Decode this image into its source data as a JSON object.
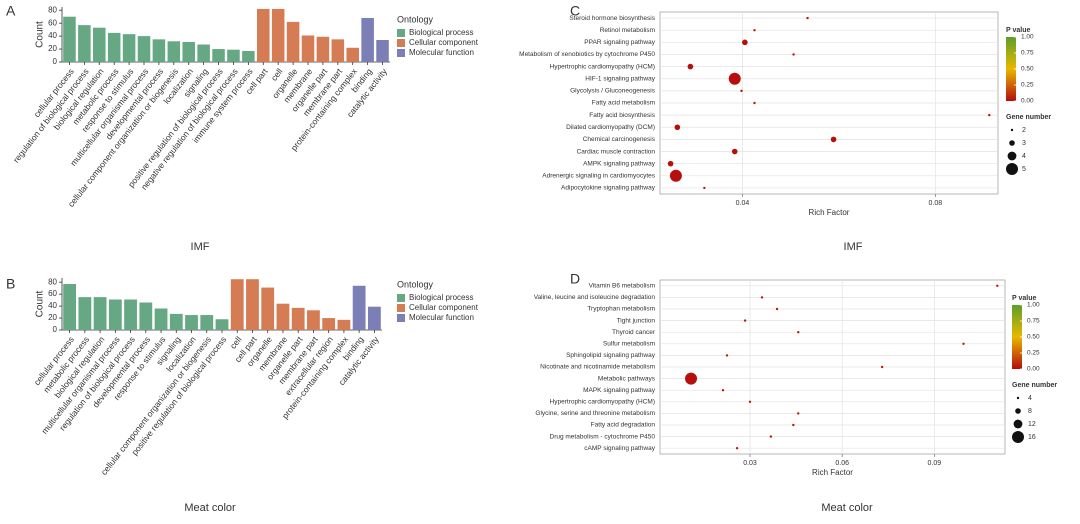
{
  "chart_data": [
    {
      "type": "bar",
      "panel_label": "A",
      "caption": "IMF",
      "ylabel": "Count",
      "legend_title": "Ontology",
      "categories": [
        "cellular process",
        "regulation of biological process",
        "biological regulation",
        "metabolic process",
        "response to stimulus",
        "multicellular organismal process",
        "developmental process",
        "cellular component organization or biogenesis",
        "localization",
        "signaling",
        "positive regulation of biological process",
        "negative regulation of biological process",
        "immune system process",
        "cell part",
        "cell",
        "organelle",
        "membrane",
        "organelle part",
        "membrane part",
        "protein-containing complex",
        "binding",
        "catalytic activity"
      ],
      "series": [
        {
          "name": "Biological process",
          "color": "#66a883",
          "values": [
            70,
            57,
            53,
            45,
            43,
            40,
            35,
            32,
            31,
            27,
            20,
            19,
            17,
            null,
            null,
            null,
            null,
            null,
            null,
            null,
            null,
            null
          ]
        },
        {
          "name": "Cellular component",
          "color": "#d57c55",
          "values": [
            null,
            null,
            null,
            null,
            null,
            null,
            null,
            null,
            null,
            null,
            null,
            null,
            null,
            82,
            82,
            62,
            41,
            39,
            35,
            22,
            null,
            null
          ]
        },
        {
          "name": "Molecular function",
          "color": "#7b7fb6",
          "values": [
            null,
            null,
            null,
            null,
            null,
            null,
            null,
            null,
            null,
            null,
            null,
            null,
            null,
            null,
            null,
            null,
            null,
            null,
            null,
            null,
            68,
            34
          ]
        }
      ],
      "ylim": [
        0,
        85
      ],
      "yticks": [
        0,
        20,
        40,
        60,
        80
      ]
    },
    {
      "type": "bubble",
      "panel_label": "C",
      "caption": "IMF",
      "xlabel": "Rich Factor",
      "categories": [
        "Steroid hormone biosynthesis",
        "Retinol metabolism",
        "PPAR signaling pathway",
        "Metabolism of xenobiotics by cytochrome P450",
        "Hypertrophic cardiomyopathy (HCM)",
        "HIF-1 signaling pathway",
        "Glycolysis / Gluconeogenesis",
        "Fatty acid metabolism",
        "Fatty acid biosynthesis",
        "Dilated cardiomyopathy (DCM)",
        "Chemical carcinogenesis",
        "Cardiac muscle contraction",
        "AMPK signaling pathway",
        "Adrenergic signaling in cardiomyocytes",
        "Adipocytokine signaling pathway"
      ],
      "x": [
        0.0535,
        0.0425,
        0.0405,
        0.0506,
        0.0292,
        0.0384,
        0.0398,
        0.0425,
        0.0912,
        0.0265,
        0.0589,
        0.0384,
        0.0251,
        0.0262,
        0.0321
      ],
      "sizes": [
        2,
        2,
        3,
        2,
        3,
        5,
        2,
        2,
        2,
        3,
        3,
        3,
        3,
        5,
        2
      ],
      "p_values": [
        0.02,
        0.03,
        0.01,
        0.02,
        0.01,
        0.005,
        0.03,
        0.03,
        0.04,
        0.01,
        0.01,
        0.01,
        0.01,
        0.005,
        0.02
      ],
      "xlim": [
        0.0229,
        0.093
      ],
      "xticks": [
        0.04,
        0.08
      ],
      "color_legend_title": "P value",
      "colors": [
        "#b50d0d",
        "#e8b800",
        "#5d9e2a"
      ],
      "color_ticks": [
        {
          "value": 0,
          "label": "0.00"
        },
        {
          "value": 0.25,
          "label": "0.25"
        },
        {
          "value": 0.5,
          "label": "0.50"
        },
        {
          "value": 0.75,
          "label": "0.75"
        },
        {
          "value": 1,
          "label": "1.00"
        }
      ],
      "size_legend_title": "Gene number",
      "size_ticks": [
        2,
        3,
        4,
        5
      ]
    },
    {
      "type": "bar",
      "panel_label": "B",
      "caption": "Meat color",
      "ylabel": "Count",
      "legend_title": "Ontology",
      "categories": [
        "cellular process",
        "metabolic process",
        "biological regulation",
        "multicellular organismal process",
        "regulation of biological process",
        "developmental process",
        "response to stimulus",
        "signaling",
        "localization",
        "cellular component organization or biogenesis",
        "positive regulation of biological process",
        "cell",
        "cell part",
        "organelle",
        "membrane",
        "organelle part",
        "membrane part",
        "extracellular region",
        "protein-containing complex",
        "binding",
        "catalytic activity"
      ],
      "series": [
        {
          "name": "Biological process",
          "color": "#66a883",
          "values": [
            77,
            55,
            55,
            51,
            51,
            46,
            36,
            27,
            25,
            25,
            18,
            null,
            null,
            null,
            null,
            null,
            null,
            null,
            null,
            null,
            null
          ]
        },
        {
          "name": "Cellular component",
          "color": "#d57c55",
          "values": [
            null,
            null,
            null,
            null,
            null,
            null,
            null,
            null,
            null,
            null,
            null,
            85,
            85,
            71,
            44,
            37,
            33,
            20,
            17,
            null,
            null
          ]
        },
        {
          "name": "Molecular function",
          "color": "#7b7fb6",
          "values": [
            null,
            null,
            null,
            null,
            null,
            null,
            null,
            null,
            null,
            null,
            null,
            null,
            null,
            null,
            null,
            null,
            null,
            null,
            null,
            74,
            39
          ]
        }
      ],
      "ylim": [
        0,
        87
      ],
      "yticks": [
        0,
        20,
        40,
        60,
        80
      ]
    },
    {
      "type": "bubble",
      "panel_label": "D",
      "caption": "Meat color",
      "xlabel": "Rich Factor",
      "categories": [
        "Vitamin B6 metabolism",
        "Valine, leucine and isoleucine degradation",
        "Tryptophan metabolism",
        "Tight junction",
        "Thyroid cancer",
        "Sulfur metabolism",
        "Sphingolipid signaling pathway",
        "Nicotinate and nicotinamide metabolism",
        "Metabolic pathways",
        "MAPK signaling pathway",
        "Hypertrophic cardiomyopathy (HCM)",
        "Glycine, serine and threonine metabolism",
        "Fatty acid degradation",
        "Drug metabolism - cytochrome P450",
        "cAMP signaling pathway"
      ],
      "x": [
        0.1105,
        0.0339,
        0.0388,
        0.0284,
        0.0457,
        0.0995,
        0.0225,
        0.073,
        0.0108,
        0.0212,
        0.03,
        0.0457,
        0.0441,
        0.0368,
        0.0258
      ],
      "sizes": [
        4,
        4,
        4,
        4,
        4,
        4,
        4,
        4,
        16,
        4,
        4,
        4,
        4,
        4,
        4
      ],
      "p_values": [
        0.04,
        0.03,
        0.03,
        0.03,
        0.03,
        0.04,
        0.03,
        0.03,
        0.01,
        0.03,
        0.03,
        0.03,
        0.03,
        0.03,
        0.03
      ],
      "xlim": [
        0.0007,
        0.113
      ],
      "xticks": [
        0.03,
        0.06,
        0.09
      ],
      "color_legend_title": "P value",
      "colors": [
        "#b50d0d",
        "#e8b800",
        "#5d9e2a"
      ],
      "color_ticks": [
        {
          "value": 0,
          "label": "0.00"
        },
        {
          "value": 0.25,
          "label": "0.25"
        },
        {
          "value": 0.5,
          "label": "0.50"
        },
        {
          "value": 0.75,
          "label": "0.75"
        },
        {
          "value": 1,
          "label": "1.00"
        }
      ],
      "size_legend_title": "Gene number",
      "size_ticks": [
        4,
        8,
        12,
        16
      ]
    }
  ]
}
